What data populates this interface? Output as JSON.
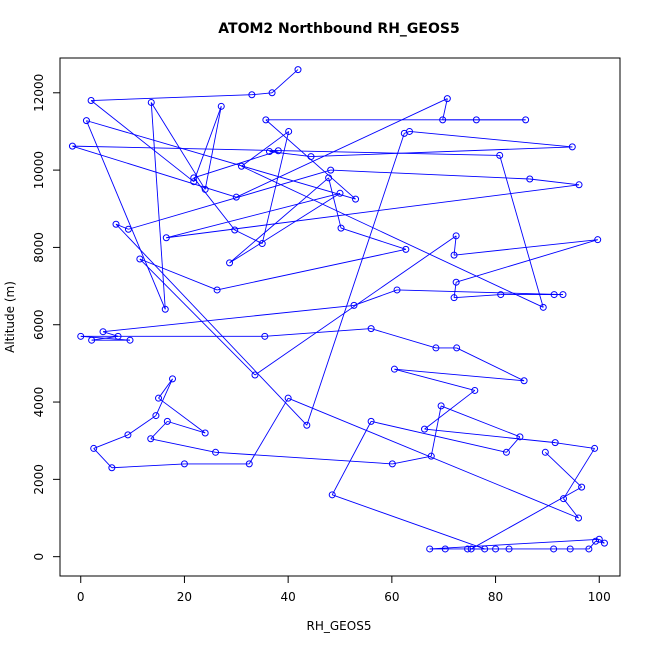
{
  "chart_data": {
    "type": "line",
    "title": "ATOM2 Northbound RH_GEOS5",
    "xlabel": "RH_GEOS5",
    "ylabel": "Altitude (m)",
    "xlim": [
      -4,
      104
    ],
    "ylim": [
      -500,
      12900
    ],
    "x_ticks": [
      0,
      20,
      40,
      60,
      80,
      100
    ],
    "y_ticks": [
      0,
      2000,
      4000,
      6000,
      8000,
      10000,
      12000
    ],
    "grid": false,
    "line_color": "#0000ff",
    "marker": "open-circle",
    "series": [
      {
        "points": [
          [
            41.9,
            12600
          ],
          [
            36.9,
            12000
          ],
          [
            33.0,
            11950
          ],
          [
            2.0,
            11800
          ],
          [
            21.8,
            9700
          ],
          [
            27.1,
            11650
          ],
          [
            24.0,
            9500
          ],
          [
            13.6,
            11750
          ],
          [
            16.3,
            6400
          ],
          [
            1.1,
            11280
          ],
          [
            53.0,
            9250
          ],
          [
            35.7,
            11300
          ],
          [
            85.8,
            11300
          ],
          [
            76.3,
            11300
          ],
          [
            69.8,
            11300
          ],
          [
            70.7,
            11850
          ],
          [
            30.0,
            9300
          ],
          [
            -1.6,
            10620
          ],
          [
            80.8,
            10380
          ],
          [
            89.2,
            6450
          ],
          [
            31.0,
            10100
          ],
          [
            40.1,
            11000
          ],
          [
            35.0,
            8100
          ],
          [
            29.7,
            8450
          ],
          [
            21.8,
            9800
          ],
          [
            38.1,
            10500
          ],
          [
            36.4,
            10480
          ],
          [
            44.4,
            10350
          ],
          [
            94.8,
            10600
          ],
          [
            63.4,
            11000
          ],
          [
            62.4,
            10950
          ],
          [
            43.6,
            3400
          ],
          [
            6.8,
            8600
          ],
          [
            9.2,
            8470
          ],
          [
            48.2,
            10000
          ],
          [
            86.6,
            9770
          ],
          [
            96.1,
            9620
          ],
          [
            16.5,
            8250
          ],
          [
            50.0,
            9400
          ],
          [
            28.7,
            7600
          ],
          [
            47.8,
            9800
          ],
          [
            50.2,
            8500
          ],
          [
            62.7,
            7950
          ],
          [
            26.3,
            6900
          ],
          [
            11.4,
            7700
          ],
          [
            33.6,
            4700
          ],
          [
            72.4,
            8300
          ],
          [
            72.0,
            7800
          ],
          [
            99.7,
            8200
          ],
          [
            72.4,
            7100
          ],
          [
            72.0,
            6700
          ],
          [
            81.0,
            6780
          ],
          [
            91.3,
            6780
          ],
          [
            93.0,
            6780
          ],
          [
            61.0,
            6900
          ],
          [
            52.7,
            6500
          ],
          [
            4.3,
            5820
          ],
          [
            7.2,
            5700
          ],
          [
            2.1,
            5600
          ],
          [
            9.5,
            5600
          ],
          [
            0.0,
            5700
          ],
          [
            35.5,
            5700
          ],
          [
            56.0,
            5900
          ],
          [
            68.5,
            5400
          ],
          [
            72.5,
            5400
          ],
          [
            85.5,
            4550
          ],
          [
            60.5,
            4850
          ],
          [
            76.0,
            4300
          ],
          [
            66.3,
            3300
          ],
          [
            91.5,
            2950
          ],
          [
            99.1,
            2800
          ],
          [
            93.1,
            1500
          ],
          [
            96.0,
            1000
          ],
          [
            40.0,
            4100
          ],
          [
            32.5,
            2400
          ],
          [
            20.0,
            2400
          ],
          [
            6.0,
            2300
          ],
          [
            2.5,
            2800
          ],
          [
            9.1,
            3150
          ],
          [
            14.5,
            3650
          ],
          [
            17.7,
            4600
          ],
          [
            15.0,
            4100
          ],
          [
            24.0,
            3200
          ],
          [
            16.7,
            3500
          ],
          [
            13.5,
            3050
          ],
          [
            26.0,
            2700
          ],
          [
            60.1,
            2400
          ],
          [
            67.6,
            2600
          ],
          [
            69.5,
            3900
          ],
          [
            84.7,
            3100
          ],
          [
            82.1,
            2700
          ],
          [
            56.0,
            3500
          ],
          [
            48.5,
            1600
          ],
          [
            77.9,
            200
          ],
          [
            74.6,
            200
          ],
          [
            80.0,
            200
          ],
          [
            82.6,
            200
          ],
          [
            91.2,
            200
          ],
          [
            94.4,
            200
          ],
          [
            98.0,
            200
          ],
          [
            99.3,
            400
          ],
          [
            101.0,
            350
          ],
          [
            100.0,
            450
          ],
          [
            67.3,
            200
          ],
          [
            70.3,
            200
          ],
          [
            75.3,
            200
          ],
          [
            96.6,
            1800
          ],
          [
            89.6,
            2700
          ]
        ]
      }
    ]
  }
}
